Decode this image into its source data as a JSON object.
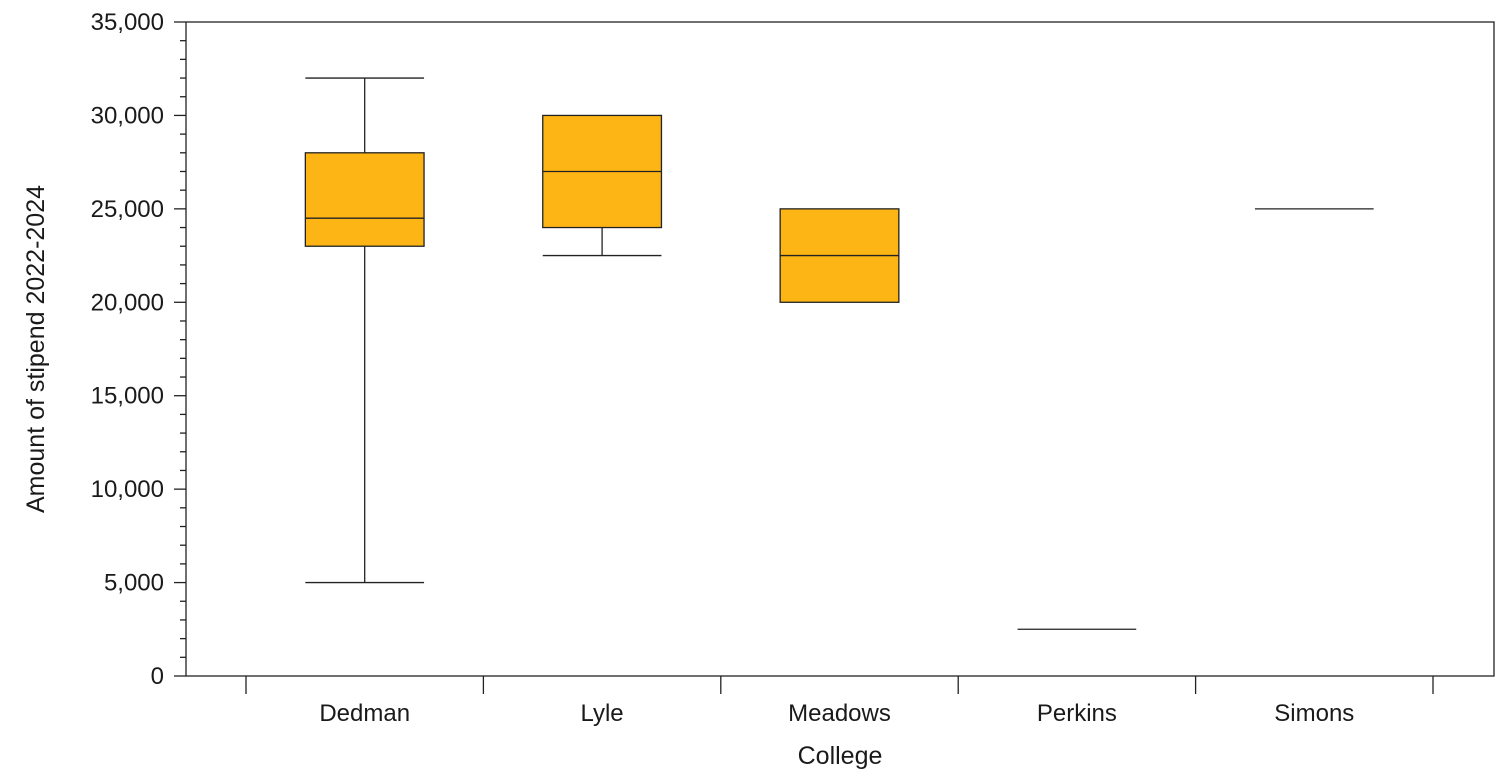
{
  "chart_data": {
    "type": "boxplot",
    "xlabel": "College",
    "ylabel": "Amount of stipend 2022-2024",
    "ylim": [
      0,
      35000
    ],
    "y_ticks": [
      {
        "value": 0,
        "label": "0"
      },
      {
        "value": 5000,
        "label": "5,000"
      },
      {
        "value": 10000,
        "label": "10,000"
      },
      {
        "value": 15000,
        "label": "15,000"
      },
      {
        "value": 20000,
        "label": "20,000"
      },
      {
        "value": 25000,
        "label": "25,000"
      },
      {
        "value": 30000,
        "label": "30,000"
      },
      {
        "value": 35000,
        "label": "35,000"
      }
    ],
    "y_minor_step": 1000,
    "grid": false,
    "box_color": "#FDB515",
    "categories": [
      "Dedman",
      "Lyle",
      "Meadows",
      "Perkins",
      "Simons"
    ],
    "boxes": [
      {
        "category": "Dedman",
        "min": 5000,
        "q1": 23000,
        "median": 24500,
        "q3": 28000,
        "max": 32000
      },
      {
        "category": "Lyle",
        "min": 22500,
        "q1": 24000,
        "median": 27000,
        "q3": 30000,
        "max": 30000
      },
      {
        "category": "Meadows",
        "min": 20000,
        "q1": 20000,
        "median": 22500,
        "q3": 25000,
        "max": 25000
      },
      {
        "category": "Perkins",
        "min": 2500,
        "q1": 2500,
        "median": 2500,
        "q3": 2500,
        "max": 2500
      },
      {
        "category": "Simons",
        "min": 25000,
        "q1": 25000,
        "median": 25000,
        "q3": 25000,
        "max": 25000
      }
    ]
  }
}
